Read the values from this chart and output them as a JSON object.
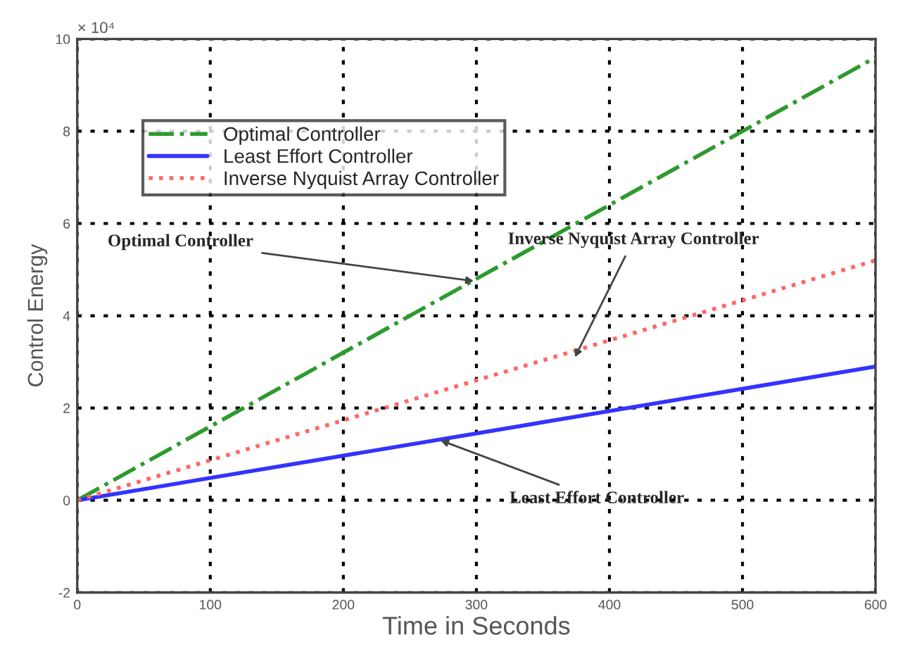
{
  "chart_data": {
    "type": "line",
    "xlabel": "Time in Seconds",
    "ylabel": "Control Energy",
    "xlim": [
      0,
      600
    ],
    "xticks": [
      0,
      100,
      200,
      300,
      400,
      500,
      600
    ],
    "ylim": [
      -2,
      10
    ],
    "yticks": [
      -2,
      0,
      2,
      4,
      6,
      8,
      10
    ],
    "grid": true,
    "legend": "top left",
    "series": [
      {
        "name": "Optimal Controller",
        "color": "#2e9a2e",
        "line_style": "dashdot",
        "x": [
          0,
          300,
          600
        ],
        "values": [
          0,
          4.8,
          9.6
        ]
      },
      {
        "name": "Least Effort Controller",
        "color": "#3333ff",
        "line_style": "solid",
        "x": [
          0,
          300,
          600
        ],
        "values": [
          0,
          1.45,
          2.9
        ]
      },
      {
        "name": "Inverse Nyquist Array Controller",
        "color": "#ff6666",
        "line_style": "dotted",
        "x": [
          0,
          300,
          600
        ],
        "values": [
          0,
          2.6,
          5.2
        ]
      }
    ],
    "annotations": [
      "× 10⁴",
      {
        "text": "Optimal Controller",
        "x": 298,
        "y": 4.75
      },
      {
        "text": "Inverse Nyquist Array Controller",
        "x": 374,
        "y": 3.1
      },
      {
        "text": "Least Effort Controller",
        "x": 273,
        "y": 1.3
      }
    ]
  }
}
